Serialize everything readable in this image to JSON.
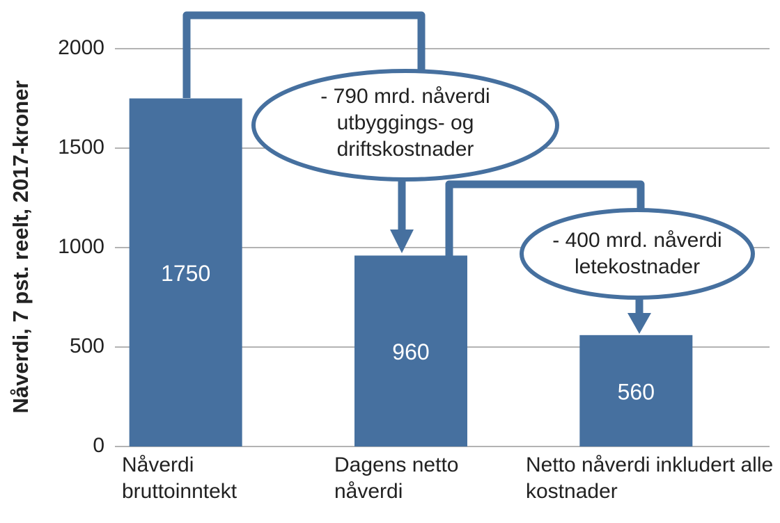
{
  "chart_data": {
    "type": "bar",
    "y_label": "Nåverdi, 7 pst. reelt, 2017-kroner",
    "categories": [
      "Nåverdi bruttoinntekt",
      "Dagens netto nåverdi",
      "Netto nåverdi inkludert alle kostnader"
    ],
    "values": [
      1750,
      960,
      560
    ],
    "color": "#46709f",
    "ylim": [
      0,
      2000
    ],
    "yticks": [
      0,
      500,
      1000,
      1500,
      2000
    ],
    "grid": true,
    "annotations": [
      "- 790 mrd. nåverdi utbyggings- og driftskostnader",
      "- 400 mrd. nåverdi letekostnader"
    ]
  }
}
